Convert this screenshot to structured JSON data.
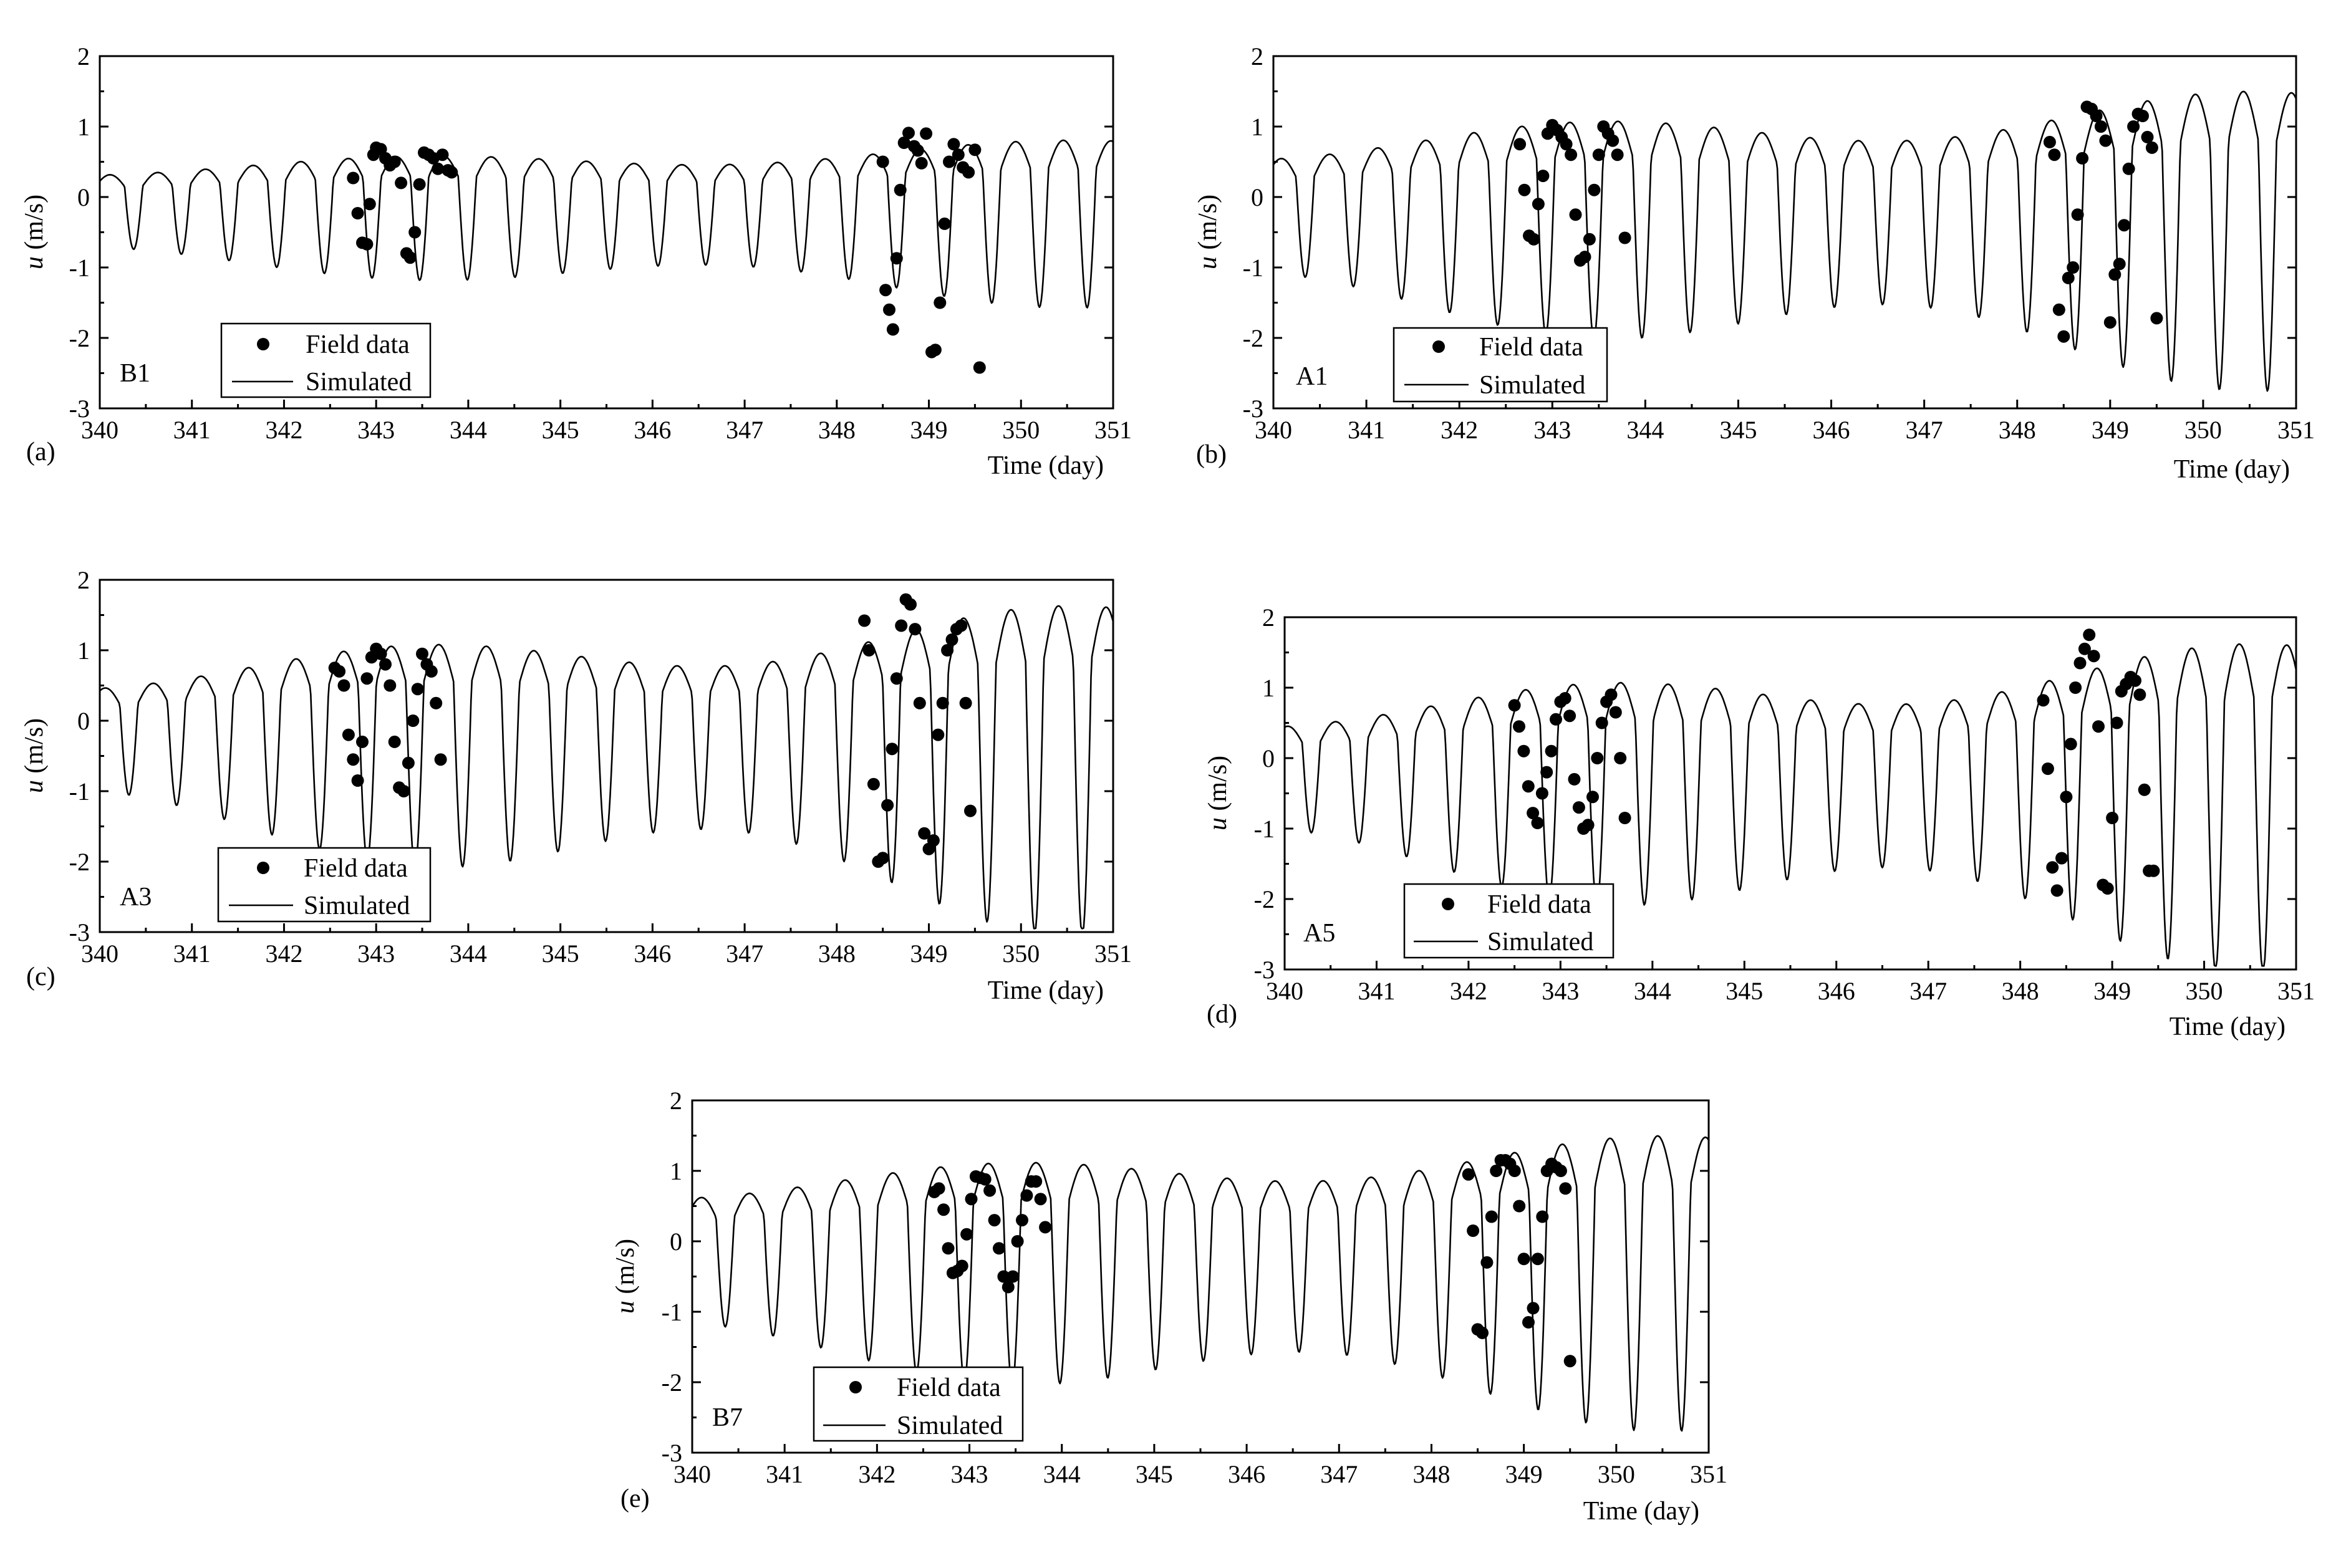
{
  "chart_data": [
    {
      "type": "line",
      "panel_label": "(a)",
      "station": "B1",
      "xlabel": "Time (day)",
      "ylabel_italic": "u",
      "ylabel_units": " (m/s)",
      "xlim": [
        340,
        351
      ],
      "ylim": [
        -3,
        2
      ],
      "xticks": [
        340,
        341,
        342,
        343,
        344,
        345,
        346,
        347,
        348,
        349,
        350,
        351
      ],
      "yticks": [
        -3,
        -2,
        -1,
        0,
        1,
        2
      ],
      "legend": {
        "placement": "lower-left",
        "entries": [
          "Field data",
          "Simulated"
        ]
      },
      "simulated": {
        "amp_start": 0.45,
        "amp_end": 0.75,
        "mean": -0.3,
        "neap_day": 341.5,
        "spring_mod": 0.18,
        "phase": 0.1
      },
      "field_data": [
        {
          "x": [
            342.75,
            342.8,
            342.85,
            342.9,
            342.93,
            342.97,
            343.0,
            343.05,
            343.1,
            343.15,
            343.2,
            343.27,
            343.33,
            343.37,
            343.42,
            343.47,
            343.52,
            343.57,
            343.62,
            343.67,
            343.72,
            343.78,
            343.82
          ],
          "y": [
            0.27,
            -0.23,
            -0.65,
            -0.67,
            -0.1,
            0.6,
            0.7,
            0.68,
            0.55,
            0.45,
            0.5,
            0.2,
            -0.8,
            -0.86,
            -0.5,
            0.18,
            0.63,
            0.6,
            0.55,
            0.4,
            0.6,
            0.38,
            0.35
          ]
        },
        {
          "x": [
            348.5,
            348.53,
            348.57,
            348.61,
            348.65,
            348.69,
            348.73,
            348.78,
            348.84,
            348.88,
            348.92,
            348.97,
            349.03,
            349.07,
            349.12,
            349.17,
            349.22,
            349.27,
            349.32,
            349.37,
            349.43,
            349.5,
            349.55
          ],
          "y": [
            0.5,
            -1.32,
            -1.6,
            -1.88,
            -0.87,
            0.1,
            0.77,
            0.91,
            0.72,
            0.66,
            0.48,
            0.9,
            -2.2,
            -2.17,
            -1.5,
            -0.38,
            0.5,
            0.75,
            0.6,
            0.42,
            0.35,
            0.67,
            -2.42
          ]
        }
      ]
    },
    {
      "type": "line",
      "panel_label": "(b)",
      "station": "A1",
      "xlabel": "Time (day)",
      "ylabel_italic": "u",
      "ylabel_units": " (m/s)",
      "xlim": [
        340,
        351
      ],
      "ylim": [
        -3,
        2
      ],
      "xticks": [
        340,
        341,
        342,
        343,
        344,
        345,
        346,
        347,
        348,
        349,
        350,
        351
      ],
      "yticks": [
        -3,
        -2,
        -1,
        0,
        1,
        2
      ],
      "legend": {
        "placement": "lower-left",
        "entries": [
          "Field data",
          "Simulated"
        ]
      },
      "simulated": {
        "amp_start": 0.75,
        "amp_end": 1.3,
        "mean": -0.25,
        "neap_day": 341.5,
        "spring_mod": 0.22,
        "phase": 0.15
      },
      "field_data": [
        {
          "x": [
            342.65,
            342.7,
            342.75,
            342.8,
            342.85,
            342.9,
            342.95,
            343.0,
            343.05,
            343.1,
            343.15,
            343.2,
            343.25,
            343.3,
            343.35,
            343.4,
            343.45,
            343.5,
            343.55,
            343.6,
            343.65,
            343.7,
            343.78
          ],
          "y": [
            0.75,
            0.1,
            -0.55,
            -0.6,
            -0.1,
            0.3,
            0.9,
            1.02,
            0.95,
            0.85,
            0.75,
            0.6,
            -0.25,
            -0.9,
            -0.85,
            -0.6,
            0.1,
            0.6,
            1.0,
            0.9,
            0.8,
            0.6,
            -0.58
          ]
        },
        {
          "x": [
            348.35,
            348.4,
            348.45,
            348.5,
            348.55,
            348.6,
            348.65,
            348.7,
            348.75,
            348.8,
            348.85,
            348.9,
            348.95,
            349.0,
            349.05,
            349.1,
            349.15,
            349.2,
            349.25,
            349.3,
            349.35,
            349.4,
            349.45,
            349.5
          ],
          "y": [
            0.78,
            0.6,
            -1.6,
            -1.98,
            -1.15,
            -1.0,
            -0.25,
            0.55,
            1.28,
            1.25,
            1.15,
            1.0,
            0.8,
            -1.78,
            -1.1,
            -0.95,
            -0.4,
            0.4,
            1.0,
            1.18,
            1.15,
            0.85,
            0.7,
            -1.72
          ]
        }
      ]
    },
    {
      "type": "line",
      "panel_label": "(c)",
      "station": "A3",
      "xlabel": "Time (day)",
      "ylabel_italic": "u",
      "ylabel_units": " (m/s)",
      "xlim": [
        340,
        351
      ],
      "ylim": [
        -3,
        2
      ],
      "xticks": [
        340,
        341,
        342,
        343,
        344,
        345,
        346,
        347,
        348,
        349,
        350,
        351
      ],
      "yticks": [
        -3,
        -2,
        -1,
        0,
        1,
        2
      ],
      "legend": {
        "placement": "lower-left",
        "entries": [
          "Field data",
          "Simulated"
        ]
      },
      "simulated": {
        "amp_start": 0.7,
        "amp_end": 1.4,
        "mean": -0.35,
        "neap_day": 341.5,
        "spring_mod": 0.25,
        "phase": 0.2
      },
      "field_data": [
        {
          "x": [
            342.55,
            342.6,
            342.65,
            342.7,
            342.75,
            342.8,
            342.85,
            342.9,
            342.95,
            343.0,
            343.05,
            343.1,
            343.15,
            343.2,
            343.25,
            343.3,
            343.35,
            343.4,
            343.45,
            343.5,
            343.55,
            343.6,
            343.65,
            343.7
          ],
          "y": [
            0.75,
            0.7,
            0.5,
            -0.2,
            -0.55,
            -0.85,
            -0.3,
            0.6,
            0.9,
            1.02,
            0.95,
            0.8,
            0.5,
            -0.3,
            -0.95,
            -1.0,
            -0.6,
            0.0,
            0.45,
            0.95,
            0.8,
            0.7,
            0.25,
            -0.55
          ]
        },
        {
          "x": [
            348.3,
            348.35,
            348.4,
            348.45,
            348.5,
            348.55,
            348.6,
            348.65,
            348.7,
            348.75,
            348.8,
            348.85,
            348.9,
            348.95,
            349.0,
            349.05,
            349.1,
            349.15,
            349.2,
            349.25,
            349.3,
            349.35,
            349.4,
            349.45
          ],
          "y": [
            1.42,
            1.0,
            -0.9,
            -2.0,
            -1.95,
            -1.2,
            -0.4,
            0.6,
            1.35,
            1.72,
            1.65,
            1.3,
            0.25,
            -1.6,
            -1.82,
            -1.7,
            -0.2,
            0.25,
            1.0,
            1.15,
            1.3,
            1.35,
            0.25,
            -1.28
          ]
        }
      ]
    },
    {
      "type": "line",
      "panel_label": "(d)",
      "station": "A5",
      "xlabel": "Time (day)",
      "ylabel_italic": "u",
      "ylabel_units": " (m/s)",
      "xlim": [
        340,
        351
      ],
      "ylim": [
        -3,
        2
      ],
      "xticks": [
        340,
        341,
        342,
        343,
        344,
        345,
        346,
        347,
        348,
        349,
        350,
        351
      ],
      "yticks": [
        -3,
        -2,
        -1,
        0,
        1,
        2
      ],
      "legend": {
        "placement": "lower-left",
        "entries": [
          "Field data",
          "Simulated"
        ]
      },
      "simulated": {
        "amp_start": 0.7,
        "amp_end": 1.4,
        "mean": -0.4,
        "neap_day": 341.5,
        "spring_mod": 0.25,
        "phase": 0.25
      },
      "field_data": [
        {
          "x": [
            342.5,
            342.55,
            342.6,
            342.65,
            342.7,
            342.75,
            342.8,
            342.85,
            342.9,
            342.95,
            343.0,
            343.05,
            343.1,
            343.15,
            343.2,
            343.25,
            343.3,
            343.35,
            343.4,
            343.45,
            343.5,
            343.55,
            343.6,
            343.65,
            343.7
          ],
          "y": [
            0.75,
            0.45,
            0.1,
            -0.4,
            -0.78,
            -0.92,
            -0.5,
            -0.2,
            0.1,
            0.55,
            0.8,
            0.85,
            0.6,
            -0.3,
            -0.7,
            -1.0,
            -0.95,
            -0.55,
            0.0,
            0.5,
            0.8,
            0.9,
            0.65,
            0.0,
            -0.85
          ]
        },
        {
          "x": [
            348.25,
            348.3,
            348.35,
            348.4,
            348.45,
            348.5,
            348.55,
            348.6,
            348.65,
            348.7,
            348.75,
            348.8,
            348.85,
            348.9,
            348.95,
            349.0,
            349.05,
            349.1,
            349.15,
            349.2,
            349.25,
            349.3,
            349.35,
            349.4,
            349.45
          ],
          "y": [
            0.82,
            -0.15,
            -1.55,
            -1.88,
            -1.42,
            -0.55,
            0.2,
            1.0,
            1.35,
            1.55,
            1.75,
            1.45,
            0.45,
            -1.8,
            -1.85,
            -0.85,
            0.5,
            0.95,
            1.05,
            1.15,
            1.1,
            0.9,
            -0.45,
            -1.6,
            -1.6
          ]
        }
      ]
    },
    {
      "type": "line",
      "panel_label": "(e)",
      "station": "B7",
      "xlabel": "Time (day)",
      "ylabel_italic": "u",
      "ylabel_units": " (m/s)",
      "xlim": [
        340,
        351
      ],
      "ylim": [
        -3,
        2
      ],
      "xticks": [
        340,
        341,
        342,
        343,
        344,
        345,
        346,
        347,
        348,
        349,
        350,
        351
      ],
      "yticks": [
        -3,
        -2,
        -1,
        0,
        1,
        2
      ],
      "legend": {
        "placement": "lower-left",
        "entries": [
          "Field data",
          "Simulated"
        ]
      },
      "simulated": {
        "amp_start": 0.8,
        "amp_end": 1.3,
        "mean": -0.15,
        "neap_day": 341.5,
        "spring_mod": 0.2,
        "phase": 0.12
      },
      "field_data": [
        {
          "x": [
            342.62,
            342.67,
            342.72,
            342.77,
            342.82,
            342.87,
            342.92,
            342.97,
            343.02,
            343.07,
            343.12,
            343.17,
            343.22,
            343.27,
            343.32,
            343.37,
            343.42,
            343.47,
            343.52,
            343.57,
            343.62,
            343.67,
            343.72,
            343.77,
            343.82
          ],
          "y": [
            0.7,
            0.75,
            0.45,
            -0.1,
            -0.45,
            -0.42,
            -0.35,
            0.1,
            0.6,
            0.92,
            0.9,
            0.88,
            0.72,
            0.3,
            -0.1,
            -0.5,
            -0.65,
            -0.5,
            0.0,
            0.3,
            0.65,
            0.85,
            0.85,
            0.6,
            0.2
          ]
        },
        {
          "x": [
            348.4,
            348.45,
            348.5,
            348.55,
            348.6,
            348.65,
            348.7,
            348.75,
            348.8,
            348.85,
            348.9,
            348.95,
            349.0,
            349.05,
            349.1,
            349.15,
            349.2,
            349.25,
            349.3,
            349.35,
            349.4,
            349.45,
            349.5
          ],
          "y": [
            0.95,
            0.15,
            -1.25,
            -1.3,
            -0.3,
            0.35,
            1.0,
            1.15,
            1.15,
            1.1,
            1.0,
            0.5,
            -0.25,
            -1.15,
            -0.95,
            -0.25,
            0.35,
            1.0,
            1.1,
            1.05,
            1.0,
            0.75,
            -1.7
          ]
        }
      ]
    }
  ]
}
